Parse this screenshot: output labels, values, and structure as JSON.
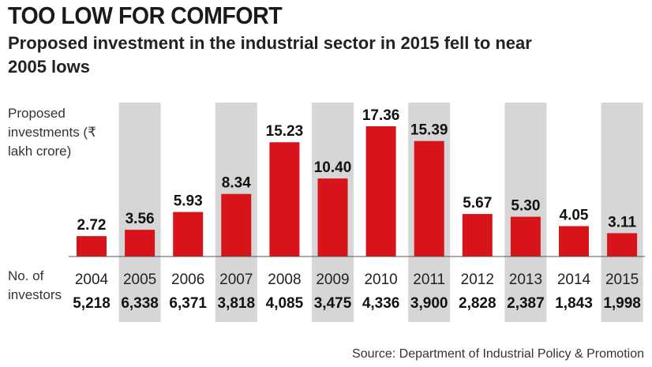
{
  "chart_data": {
    "type": "bar",
    "title": "TOO LOW FOR COMFORT",
    "subtitle": "Proposed investment in the industrial sector in 2015 fell to near 2005 lows",
    "ylabel": "Proposed investments (₹ lakh crore)",
    "categories": [
      "2004",
      "2005",
      "2006",
      "2007",
      "2008",
      "2009",
      "2010",
      "2011",
      "2012",
      "2013",
      "2014",
      "2015"
    ],
    "values": [
      2.72,
      3.56,
      5.93,
      8.34,
      15.23,
      10.4,
      17.36,
      15.39,
      5.67,
      5.3,
      4.05,
      3.11
    ],
    "value_labels": [
      "2.72",
      "3.56",
      "5.93",
      "8.34",
      "15.23",
      "10.40",
      "17.36",
      "15.39",
      "5.67",
      "5.30",
      "4.05",
      "3.11"
    ],
    "ylim": [
      0,
      17.36
    ],
    "investors_label": "No. of investors",
    "investors": [
      "5,218",
      "6,338",
      "6,371",
      "3,818",
      "4,085",
      "3,475",
      "4,336",
      "3,900",
      "2,828",
      "2,387",
      "1,843",
      "1,998"
    ],
    "shaded_years": [
      "2005",
      "2007",
      "2009",
      "2011",
      "2013",
      "2015"
    ],
    "source": "Source: Department of Industrial Policy & Promotion"
  },
  "colors": {
    "bar": "#d7141a",
    "band": "#d6d6d6"
  }
}
